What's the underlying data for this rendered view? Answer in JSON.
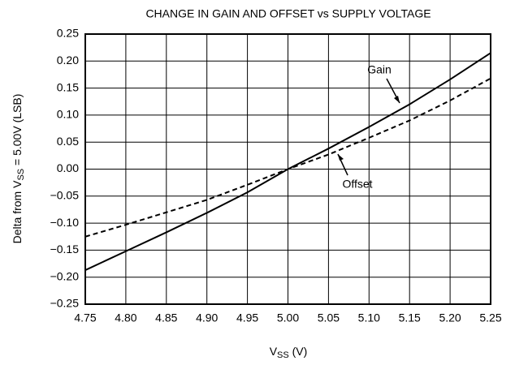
{
  "chart_data": {
    "type": "line",
    "title": "CHANGE IN GAIN AND OFFSET vs SUPPLY VOLTAGE",
    "xlabel": [
      "V",
      "SS",
      " (V)"
    ],
    "ylabel": [
      "Delta from V",
      "SS",
      " = 5.00V (LSB)"
    ],
    "x": [
      4.75,
      4.8,
      4.85,
      4.9,
      4.95,
      5.0,
      5.05,
      5.1,
      5.15,
      5.2,
      5.25
    ],
    "series": [
      {
        "name": "Gain",
        "color": "#000000",
        "dash": false,
        "values": [
          -0.187,
          -0.152,
          -0.117,
          -0.081,
          -0.043,
          0.0,
          0.038,
          0.078,
          0.12,
          0.166,
          0.215
        ]
      },
      {
        "name": "Offset",
        "color": "#000000",
        "dash": true,
        "values": [
          -0.125,
          -0.103,
          -0.08,
          -0.057,
          -0.029,
          0.0,
          0.027,
          0.058,
          0.09,
          0.127,
          0.168
        ]
      }
    ],
    "xlim": [
      4.75,
      5.25
    ],
    "xticks": [
      4.75,
      {
        "value": 4.8,
        "label": "4.80"
      },
      4.85,
      {
        "value": 4.9,
        "label": "4.90"
      },
      4.95,
      {
        "value": 5.0,
        "label": "5.00"
      },
      5.05,
      {
        "value": 5.1,
        "label": "5.10"
      },
      5.15,
      {
        "value": 5.2,
        "label": "5.20"
      },
      5.25
    ],
    "ylim": [
      -0.25,
      0.25
    ],
    "yticks": [
      {
        "value": -0.25,
        "label": "−0.25"
      },
      {
        "value": -0.2,
        "label": "−0.20"
      },
      {
        "value": -0.15,
        "label": "−0.15"
      },
      {
        "value": -0.1,
        "label": "−0.10"
      },
      {
        "value": -0.05,
        "label": "−0.05"
      },
      {
        "value": 0,
        "label": "0.00"
      },
      0.05,
      {
        "value": 0.1,
        "label": "0.10"
      },
      0.15,
      {
        "value": 0.2,
        "label": "0.20"
      },
      0.25
    ],
    "grid": true
  }
}
